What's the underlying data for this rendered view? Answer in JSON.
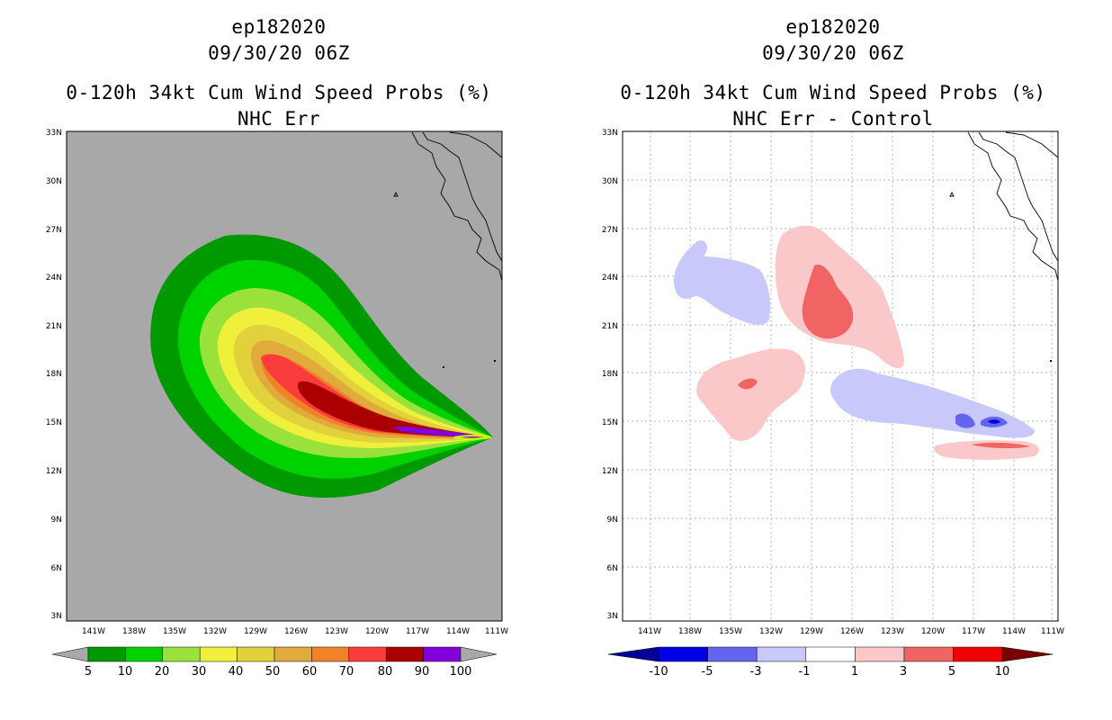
{
  "left": {
    "storm": "ep182020",
    "datetime": "09/30/20 06Z",
    "product": "0-120h 34kt Cum Wind Speed Probs (%)",
    "subtitle": "NHC Err",
    "lat_ticks": [
      "33N",
      "30N",
      "27N",
      "24N",
      "21N",
      "18N",
      "15N",
      "12N",
      "9N",
      "6N",
      "3N"
    ],
    "lon_ticks": [
      "141W",
      "138W",
      "135W",
      "132W",
      "129W",
      "126W",
      "123W",
      "120W",
      "117W",
      "114W",
      "111W"
    ],
    "colorbar": {
      "labels": [
        "5",
        "10",
        "20",
        "30",
        "40",
        "50",
        "60",
        "70",
        "80",
        "90",
        "100"
      ],
      "colors": [
        "#009a00",
        "#00d200",
        "#9ae13c",
        "#f0f03c",
        "#e1d23c",
        "#e1aa3c",
        "#f08228",
        "#fa3c3c",
        "#aa0000",
        "#8200dc"
      ],
      "under_color": "#a8a8a8",
      "over_color": "#a8a8a8"
    },
    "background_color": "#a8a8a8"
  },
  "right": {
    "storm": "ep182020",
    "datetime": "09/30/20 06Z",
    "product": "0-120h 34kt Cum Wind Speed Probs (%)",
    "subtitle": "NHC Err - Control",
    "lat_ticks": [
      "33N",
      "30N",
      "27N",
      "24N",
      "21N",
      "18N",
      "15N",
      "12N",
      "9N",
      "6N",
      "3N"
    ],
    "lon_ticks": [
      "141W",
      "138W",
      "135W",
      "132W",
      "129W",
      "126W",
      "123W",
      "120W",
      "117W",
      "114W",
      "111W"
    ],
    "colorbar": {
      "labels": [
        "-10",
        "-5",
        "-3",
        "-1",
        "1",
        "3",
        "5",
        "10"
      ],
      "colors": [
        "#0000e6",
        "#6464f0",
        "#c8c8fa",
        "#ffffff",
        "#fac8c8",
        "#f06464",
        "#f00000"
      ],
      "under_color": "#000096",
      "over_color": "#780000"
    }
  }
}
